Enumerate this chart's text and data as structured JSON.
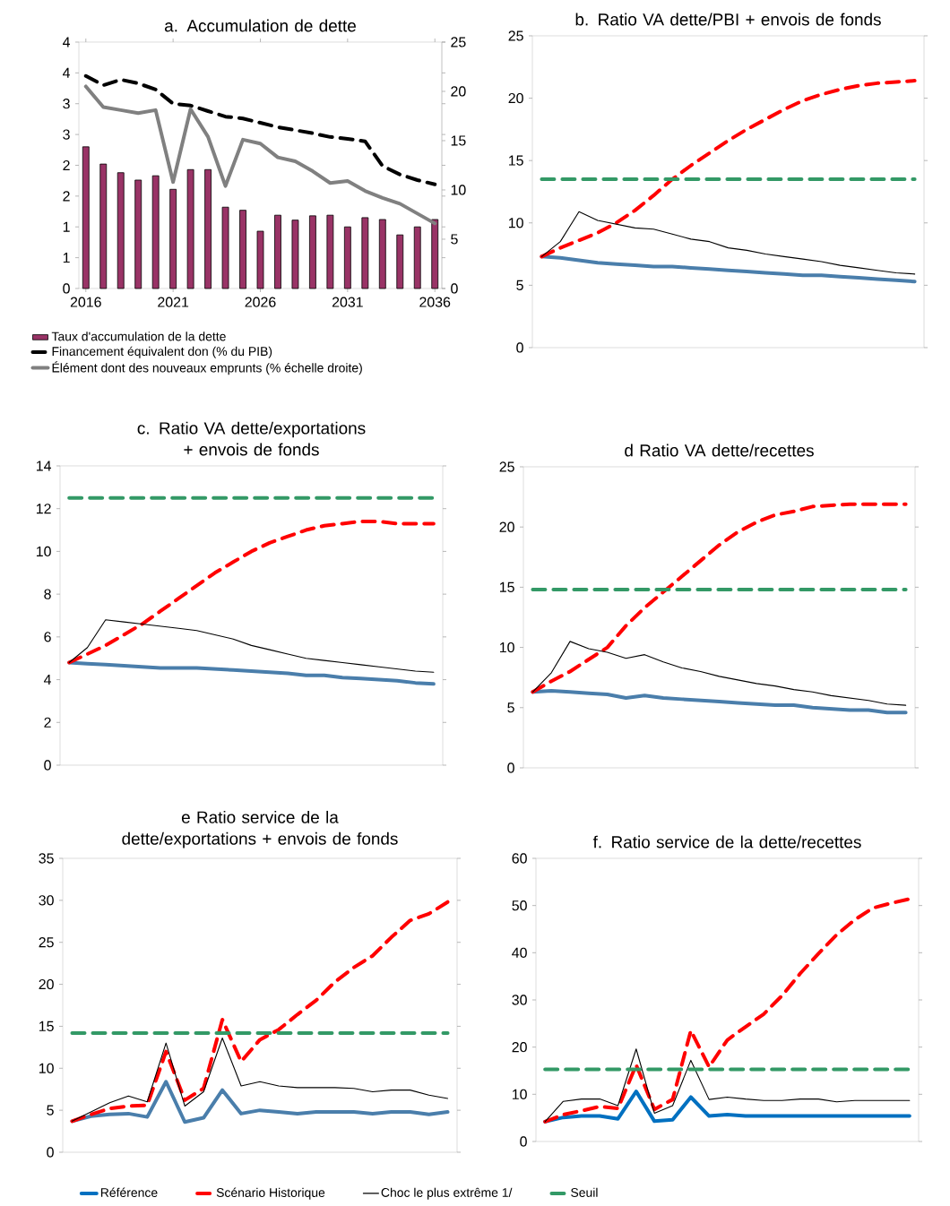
{
  "chart_data": [
    {
      "type": "bar",
      "title": "a. Accumulation  de dette",
      "x": [
        2016,
        2017,
        2018,
        2019,
        2020,
        2021,
        2022,
        2023,
        2024,
        2025,
        2026,
        2027,
        2028,
        2029,
        2030,
        2031,
        2032,
        2033,
        2034,
        2035,
        2036
      ],
      "xlim": [
        2015.6,
        2036.4
      ],
      "xticks": [
        2016,
        2021,
        2026,
        2031,
        2036
      ],
      "ylim": [
        0,
        4
      ],
      "yticks": [
        0,
        {
          "value": 0.5,
          "label": "1"
        },
        1,
        {
          "value": 1.5,
          "label": "2"
        },
        2,
        {
          "value": 2.5,
          "label": "3"
        },
        3,
        {
          "value": 3.5,
          "label": "4"
        },
        4
      ],
      "y2lim": [
        0,
        25
      ],
      "y2ticks": [
        0,
        5,
        10,
        15,
        20,
        25
      ],
      "legend": "bottom",
      "series": [
        {
          "name": "Taux d'accumulation de la dette",
          "color": "#993366",
          "values": [
            2.3,
            2.02,
            1.88,
            1.76,
            1.83,
            1.61,
            1.93,
            1.93,
            1.32,
            1.27,
            0.93,
            1.19,
            1.11,
            1.18,
            1.19,
            1.0,
            1.15,
            1.12,
            0.87,
            1.0,
            1.12
          ]
        },
        {
          "name": "Financement équivalent don (% du PIB)",
          "type": "line",
          "line_style": "dashed",
          "color": "#000000",
          "values": [
            3.45,
            3.3,
            3.39,
            3.33,
            3.23,
            3.0,
            2.97,
            2.88,
            2.79,
            2.76,
            2.69,
            2.62,
            2.57,
            2.52,
            2.46,
            2.43,
            2.39,
            1.99,
            1.85,
            1.76,
            1.69
          ]
        },
        {
          "name": "Élément dont des nouveaux emprunts (% échelle droite)",
          "type": "line",
          "axis": "y2",
          "color": "#808080",
          "values": [
            20.5,
            18.4,
            18.1,
            17.8,
            18.1,
            10.8,
            18.2,
            15.4,
            10.4,
            15.1,
            14.7,
            13.3,
            12.9,
            11.9,
            10.7,
            10.9,
            9.9,
            9.2,
            8.6,
            7.6,
            6.6
          ]
        }
      ]
    },
    {
      "type": "line",
      "title": "b. Ratio VA dette/PBI  + envois de fonds",
      "categories": [
        null,
        null,
        null,
        null,
        null,
        null,
        null,
        null,
        null,
        null,
        null,
        null,
        null,
        null,
        null,
        null,
        null,
        null,
        null,
        null,
        null
      ],
      "ylim": [
        0,
        25
      ],
      "yticks": [
        0,
        5,
        10,
        15,
        20,
        25
      ],
      "tick_labels": "y",
      "series": [
        {
          "color": "#4a7eab",
          "values": [
            7.3,
            7.2,
            7.0,
            6.8,
            6.7,
            6.6,
            6.5,
            6.5,
            6.4,
            6.3,
            6.2,
            6.1,
            6.0,
            5.9,
            5.8,
            5.8,
            5.7,
            5.6,
            5.5,
            5.4,
            5.3
          ]
        },
        {
          "color": "#ff0000",
          "line_style": "dashed",
          "values": [
            7.3,
            8.0,
            8.6,
            9.2,
            10.0,
            11.0,
            12.2,
            13.5,
            14.6,
            15.6,
            16.6,
            17.5,
            18.3,
            19.1,
            19.8,
            20.3,
            20.7,
            21.0,
            21.2,
            21.3,
            21.4
          ]
        },
        {
          "color": "#000000",
          "values": [
            7.3,
            8.5,
            10.9,
            10.2,
            9.9,
            9.6,
            9.5,
            9.1,
            8.7,
            8.5,
            8.0,
            7.8,
            7.5,
            7.3,
            7.1,
            6.9,
            6.6,
            6.4,
            6.2,
            6.0,
            5.9
          ]
        },
        {
          "color": "#339966",
          "line_style": "dashed",
          "values": [
            13.5,
            13.5,
            13.5,
            13.5,
            13.5,
            13.5,
            13.5,
            13.5,
            13.5,
            13.5,
            13.5,
            13.5,
            13.5,
            13.5,
            13.5,
            13.5,
            13.5,
            13.5,
            13.5,
            13.5,
            13.5
          ]
        }
      ]
    },
    {
      "type": "line",
      "title": "c. Ratio VA dette/exportations  + envois de fonds",
      "categories": [
        null,
        null,
        null,
        null,
        null,
        null,
        null,
        null,
        null,
        null,
        null,
        null,
        null,
        null,
        null,
        null,
        null,
        null,
        null,
        null,
        null
      ],
      "ylim": [
        0,
        14
      ],
      "yticks": [
        0,
        2,
        4,
        6,
        8,
        10,
        12,
        14
      ],
      "tick_labels": "y",
      "series": [
        {
          "color": "#4a7eab",
          "values": [
            4.8,
            4.75,
            4.7,
            4.65,
            4.6,
            4.55,
            4.55,
            4.55,
            4.5,
            4.45,
            4.4,
            4.35,
            4.3,
            4.2,
            4.2,
            4.1,
            4.05,
            4.0,
            3.95,
            3.85,
            3.8
          ]
        },
        {
          "color": "#ff0000",
          "line_style": "dashed",
          "values": [
            4.8,
            5.2,
            5.6,
            6.1,
            6.6,
            7.2,
            7.8,
            8.4,
            9.0,
            9.5,
            10.0,
            10.4,
            10.7,
            11.0,
            11.2,
            11.3,
            11.4,
            11.4,
            11.3,
            11.3,
            11.3
          ]
        },
        {
          "color": "#000000",
          "values": [
            4.8,
            5.5,
            6.8,
            6.7,
            6.6,
            6.5,
            6.4,
            6.3,
            6.1,
            5.9,
            5.6,
            5.4,
            5.2,
            5.0,
            4.9,
            4.8,
            4.7,
            4.6,
            4.5,
            4.4,
            4.35
          ]
        },
        {
          "color": "#339966",
          "line_style": "dashed",
          "values": [
            12.5,
            12.5,
            12.5,
            12.5,
            12.5,
            12.5,
            12.5,
            12.5,
            12.5,
            12.5,
            12.5,
            12.5,
            12.5,
            12.5,
            12.5,
            12.5,
            12.5,
            12.5,
            12.5,
            12.5,
            12.5
          ]
        }
      ]
    },
    {
      "type": "line",
      "title": "d Ratio VA dette/recettes",
      "categories": [
        null,
        null,
        null,
        null,
        null,
        null,
        null,
        null,
        null,
        null,
        null,
        null,
        null,
        null,
        null,
        null,
        null,
        null,
        null,
        null,
        null
      ],
      "ylim": [
        0,
        25
      ],
      "yticks": [
        0,
        5,
        10,
        15,
        20,
        25
      ],
      "tick_labels": "y",
      "series": [
        {
          "color": "#4a7eab",
          "values": [
            6.3,
            6.4,
            6.3,
            6.2,
            6.1,
            5.8,
            6.0,
            5.8,
            5.7,
            5.6,
            5.5,
            5.4,
            5.3,
            5.2,
            5.2,
            5.0,
            4.9,
            4.8,
            4.8,
            4.6,
            4.6
          ]
        },
        {
          "color": "#ff0000",
          "line_style": "dashed",
          "values": [
            6.3,
            7.2,
            8.0,
            9.0,
            10.0,
            11.8,
            13.3,
            14.6,
            15.9,
            17.2,
            18.5,
            19.6,
            20.4,
            21.0,
            21.3,
            21.7,
            21.8,
            21.9,
            21.9,
            21.9,
            21.9
          ]
        },
        {
          "color": "#000000",
          "values": [
            6.3,
            7.9,
            10.5,
            9.9,
            9.6,
            9.1,
            9.4,
            8.8,
            8.3,
            8.0,
            7.6,
            7.3,
            7.0,
            6.8,
            6.5,
            6.3,
            6.0,
            5.8,
            5.6,
            5.3,
            5.2
          ]
        },
        {
          "color": "#339966",
          "line_style": "dashed",
          "values": [
            14.8,
            14.8,
            14.8,
            14.8,
            14.8,
            14.8,
            14.8,
            14.8,
            14.8,
            14.8,
            14.8,
            14.8,
            14.8,
            14.8,
            14.8,
            14.8,
            14.8,
            14.8,
            14.8,
            14.8,
            14.8
          ]
        }
      ]
    },
    {
      "type": "line",
      "title": "e Ratio service de la dette/exportations  + envois de fonds",
      "categories": [
        null,
        null,
        null,
        null,
        null,
        null,
        null,
        null,
        null,
        null,
        null,
        null,
        null,
        null,
        null,
        null,
        null,
        null,
        null,
        null,
        null
      ],
      "ylim": [
        0,
        35
      ],
      "yticks": [
        0,
        5,
        10,
        15,
        20,
        25,
        30,
        35
      ],
      "tick_labels": "y",
      "series": [
        {
          "color": "#4a7eab",
          "values": [
            3.7,
            4.3,
            4.5,
            4.6,
            4.2,
            8.4,
            3.6,
            4.1,
            7.4,
            4.6,
            5.0,
            4.8,
            4.6,
            4.8,
            4.8,
            4.8,
            4.6,
            4.8,
            4.8,
            4.5,
            4.8
          ]
        },
        {
          "color": "#ff0000",
          "line_style": "dashed",
          "values": [
            3.7,
            4.5,
            5.2,
            5.5,
            5.6,
            12.0,
            6.2,
            7.6,
            15.8,
            10.8,
            13.4,
            14.6,
            16.4,
            18.1,
            20.3,
            22.0,
            23.4,
            25.6,
            27.6,
            28.4,
            29.8
          ]
        },
        {
          "color": "#000000",
          "values": [
            3.7,
            4.8,
            5.9,
            6.7,
            6.0,
            13.0,
            5.5,
            7.2,
            13.6,
            7.9,
            8.4,
            7.9,
            7.7,
            7.7,
            7.7,
            7.6,
            7.2,
            7.4,
            7.4,
            6.8,
            6.4
          ]
        },
        {
          "color": "#339966",
          "line_style": "dashed",
          "values": [
            14.2,
            14.2,
            14.2,
            14.2,
            14.2,
            14.2,
            14.2,
            14.2,
            14.2,
            14.2,
            14.2,
            14.2,
            14.2,
            14.2,
            14.2,
            14.2,
            14.2,
            14.2,
            14.2,
            14.2,
            14.2
          ]
        }
      ]
    },
    {
      "type": "line",
      "title": "f. Ratio service de la dette/recettes",
      "categories": [
        null,
        null,
        null,
        null,
        null,
        null,
        null,
        null,
        null,
        null,
        null,
        null,
        null,
        null,
        null,
        null,
        null,
        null,
        null,
        null,
        null
      ],
      "ylim": [
        0,
        60
      ],
      "yticks": [
        0,
        10,
        20,
        30,
        40,
        50,
        60
      ],
      "tick_labels": "y",
      "legend": "bottom",
      "series": [
        {
          "name": "Référence",
          "color": "#0070c0",
          "values": [
            4.2,
            5.1,
            5.4,
            5.4,
            4.8,
            10.6,
            4.3,
            4.6,
            9.4,
            5.4,
            5.7,
            5.4,
            5.4,
            5.4,
            5.4,
            5.4,
            5.4,
            5.4,
            5.4,
            5.4,
            5.4
          ]
        },
        {
          "name": "Scénario Historique",
          "color": "#ff0000",
          "line_style": "dashed",
          "values": [
            4.2,
            5.7,
            6.5,
            7.4,
            7.0,
            16.2,
            6.8,
            8.9,
            23.5,
            15.8,
            21.5,
            24.3,
            27.0,
            30.9,
            35.6,
            39.8,
            43.8,
            47.0,
            49.5,
            50.5,
            51.4
          ]
        },
        {
          "name": "Choc le plus extrême 1/",
          "color": "#000000",
          "values": [
            4.2,
            8.5,
            9.0,
            9.0,
            7.6,
            19.6,
            6.0,
            7.6,
            17.2,
            8.9,
            9.4,
            9.0,
            8.7,
            8.7,
            9.0,
            9.0,
            8.4,
            8.7,
            8.7,
            8.7,
            8.7
          ]
        },
        {
          "name": "Seuil",
          "color": "#339966",
          "line_style": "dashed",
          "values": [
            15.3,
            15.3,
            15.3,
            15.3,
            15.3,
            15.3,
            15.3,
            15.3,
            15.3,
            15.3,
            15.3,
            15.3,
            15.3,
            15.3,
            15.3,
            15.3,
            15.3,
            15.3,
            15.3,
            15.3,
            15.3
          ]
        }
      ]
    }
  ]
}
